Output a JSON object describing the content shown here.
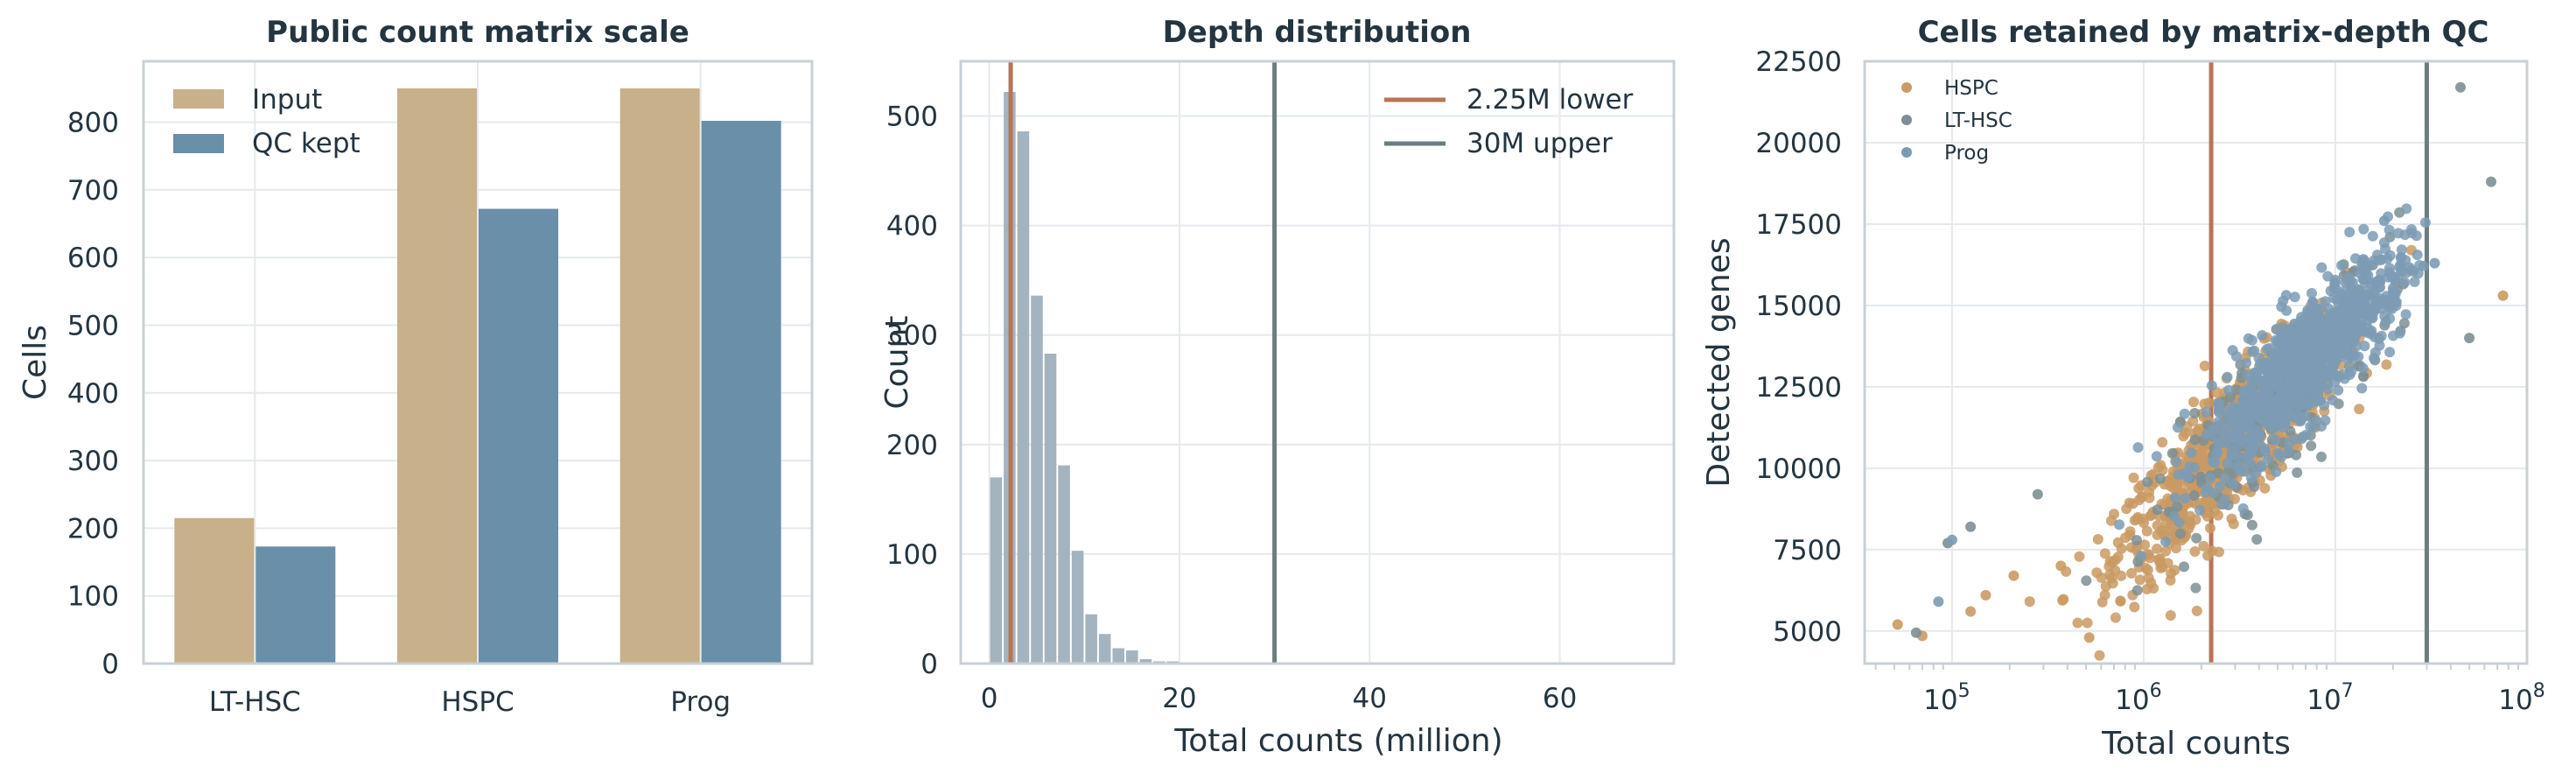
{
  "chart_data": [
    {
      "type": "bar",
      "title": "Public count matrix scale",
      "xlabel": "",
      "ylabel": "Cells",
      "categories": [
        "LT-HSC",
        "HSPC",
        "Prog"
      ],
      "series": [
        {
          "name": "Input",
          "values": [
            215,
            850,
            850
          ],
          "color": "#c8b08a"
        },
        {
          "name": "QC kept",
          "values": [
            173,
            672,
            802
          ],
          "color": "#6a8fa8"
        }
      ],
      "ylim": [
        0,
        890
      ],
      "yticks": [
        0,
        100,
        200,
        300,
        400,
        500,
        600,
        700,
        800
      ],
      "grid": true,
      "legend": "top-left"
    },
    {
      "type": "histogram",
      "title": "Depth distribution",
      "xlabel": "Total counts (million)",
      "ylabel": "Count",
      "bin_width_million": 1.43,
      "bin_start_million": 0,
      "counts": [
        170,
        522,
        486,
        336,
        283,
        181,
        103,
        45,
        27,
        14,
        12,
        4,
        2,
        2,
        1,
        0,
        0,
        1
      ],
      "color": "#a3b3c0",
      "xlim": [
        -3,
        72
      ],
      "ylim": [
        0,
        550
      ],
      "xticks": [
        0,
        20,
        40,
        60
      ],
      "yticks": [
        0,
        100,
        200,
        300,
        400,
        500
      ],
      "lines": [
        {
          "name": "2.25M lower",
          "x": 2.25,
          "color": "#b87458"
        },
        {
          "name": "30M upper",
          "x": 30,
          "color": "#6b7e80"
        }
      ],
      "grid": true,
      "legend": "top-right"
    },
    {
      "type": "scatter",
      "title": "Cells retained by matrix-depth QC",
      "xlabel": "Total counts",
      "ylabel": "Detected genes",
      "xscale": "log",
      "xlim": [
        35000,
        100000000
      ],
      "ylim": [
        4000,
        22500
      ],
      "xticks": [
        {
          "value": 100000,
          "base": "10",
          "exp": "5"
        },
        {
          "value": 1000000,
          "base": "10",
          "exp": "6"
        },
        {
          "value": 10000000,
          "base": "10",
          "exp": "7"
        },
        {
          "value": 100000000,
          "base": "10",
          "exp": "8"
        }
      ],
      "yticks": [
        5000,
        7500,
        10000,
        12500,
        15000,
        17500,
        20000,
        22500
      ],
      "vlines": [
        {
          "x": 2250000,
          "color": "#b87458"
        },
        {
          "x": 30000000,
          "color": "#6b7e80"
        }
      ],
      "series": [
        {
          "name": "HSPC",
          "color": "#c99a63",
          "n": 850,
          "center_log10": 6.45,
          "spread_log10": 0.3,
          "slope": 5600,
          "intercept_at_center": 10600,
          "noise": 1000,
          "outliers": [
            [
              52000,
              5200
            ],
            [
              70000,
              4850
            ],
            [
              125000,
              5600
            ],
            [
              150000,
              6100
            ],
            [
              210000,
              6700
            ],
            [
              370000,
              7000
            ],
            [
              520000,
              4800
            ],
            [
              75000000,
              15300
            ]
          ]
        },
        {
          "name": "LT-HSC",
          "color": "#7d8f94",
          "n": 215,
          "center_log10": 6.75,
          "spread_log10": 0.35,
          "slope": 5800,
          "intercept_at_center": 12200,
          "noise": 1100,
          "outliers": [
            [
              65000,
              4950
            ],
            [
              95000,
              7700
            ],
            [
              125000,
              8200
            ],
            [
              280000,
              9200
            ],
            [
              45000000,
              21700
            ],
            [
              65000000,
              18800
            ],
            [
              50000000,
              14000
            ]
          ]
        },
        {
          "name": "Prog",
          "color": "#7c9bb4",
          "n": 850,
          "center_log10": 6.85,
          "spread_log10": 0.26,
          "slope": 5300,
          "intercept_at_center": 13300,
          "noise": 950,
          "outliers": [
            [
              85000,
              5900
            ],
            [
              100000,
              7800
            ],
            [
              18000000,
              17600
            ],
            [
              33000000,
              16300
            ]
          ]
        }
      ],
      "grid": true,
      "legend": "top-left"
    }
  ]
}
